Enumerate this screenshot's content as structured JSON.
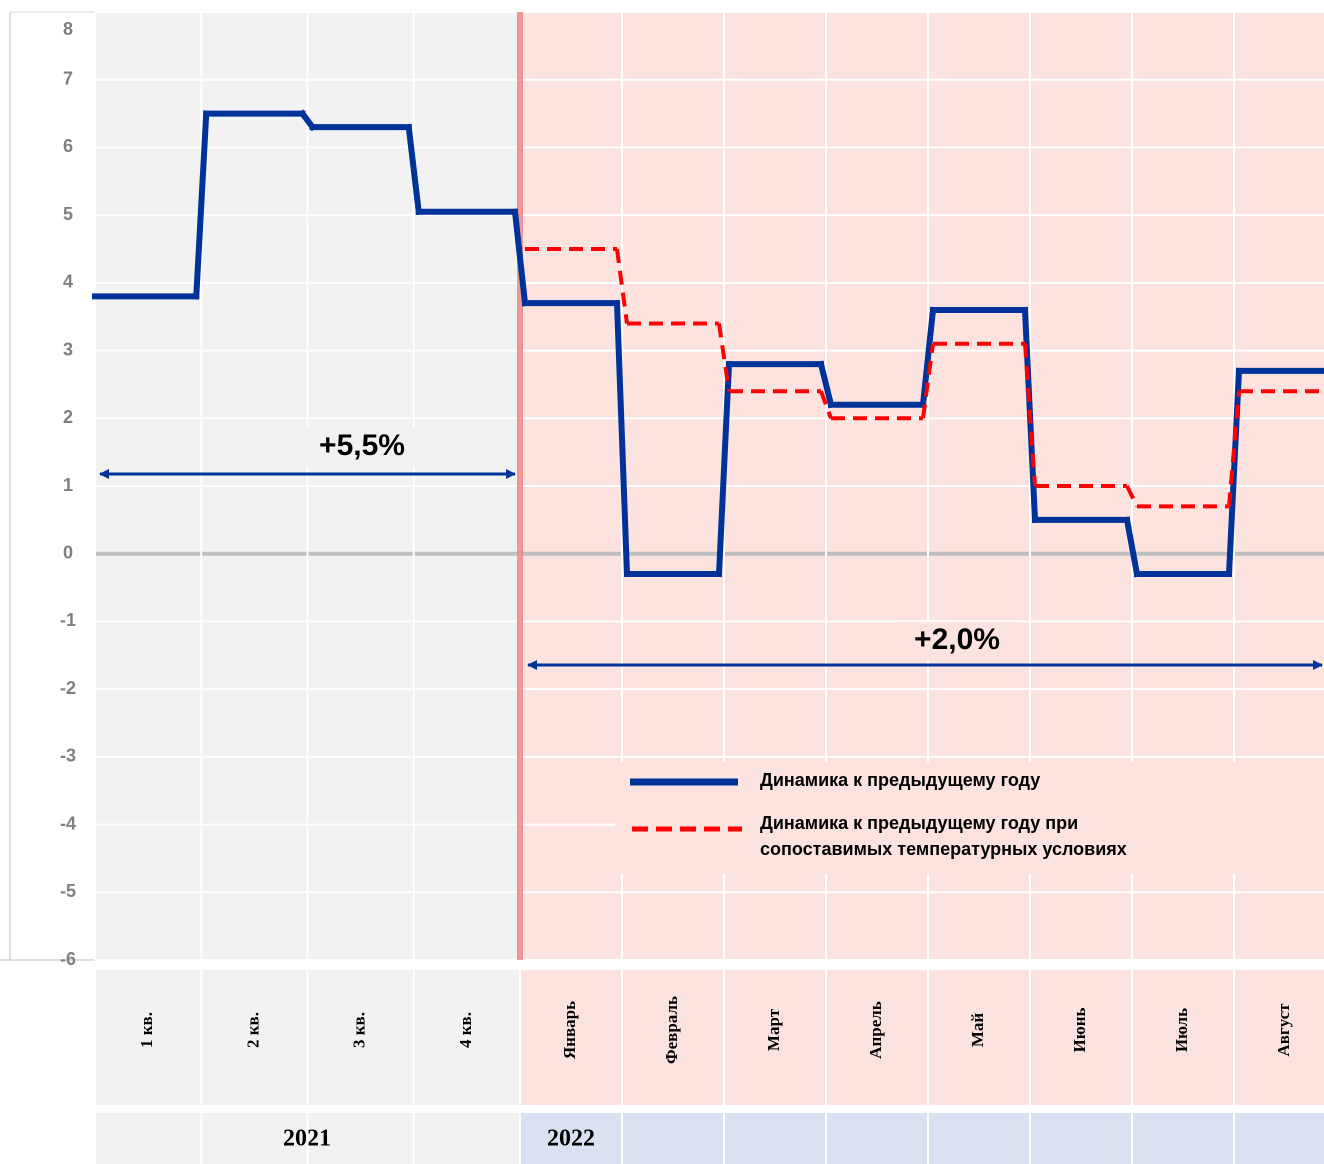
{
  "chart_data": {
    "type": "line",
    "categories": [
      "1 кв.",
      "2 кв.",
      "3 кв.",
      "4 кв.",
      "Январь",
      "Февраль",
      "Март",
      "Апрель",
      "Май",
      "Июнь",
      "Июль",
      "Август"
    ],
    "x_groups": [
      "2021",
      "2022"
    ],
    "series": [
      {
        "name": "Динамика к предыдущему году",
        "color": "#003399",
        "style": "solid",
        "values": [
          3.8,
          6.5,
          6.3,
          5.05,
          3.7,
          -0.3,
          2.8,
          2.2,
          3.6,
          0.5,
          -0.3,
          2.7
        ]
      },
      {
        "name": "Динамика к предыдущему году при сопоставимых температурных условиях",
        "color": "#ff0000",
        "style": "dashed",
        "values": [
          null,
          null,
          null,
          null,
          4.5,
          3.4,
          2.4,
          2.0,
          3.1,
          1.0,
          0.7,
          2.4
        ]
      }
    ],
    "annotations": [
      "+5,5%",
      "+2,0%"
    ],
    "ylim": [
      -6,
      8
    ],
    "yticks": [
      -6,
      -5,
      -4,
      -3,
      -2,
      -1,
      0,
      1,
      2,
      3,
      4,
      5,
      6,
      7,
      8
    ],
    "grid": true,
    "legend_position": "bottom-right"
  }
}
